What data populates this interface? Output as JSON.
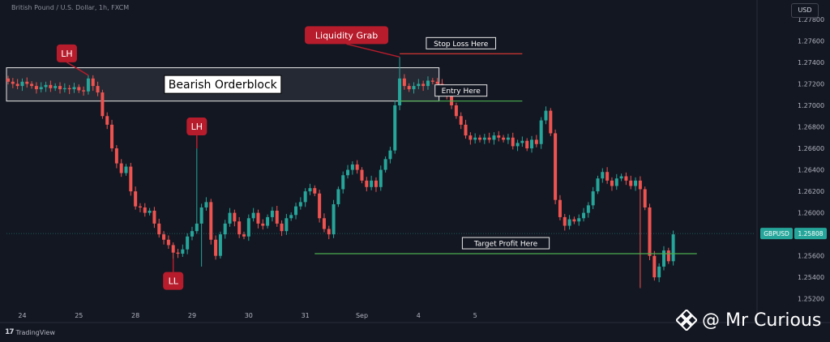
{
  "header": {
    "symbol_title": "British Pound / U.S. Dollar, 1h, FXCM",
    "currency": "USD"
  },
  "footer": {
    "tradingview_label": "TradingView"
  },
  "watermark": {
    "text": "@ Mr Curious",
    "icon": "binance-diamond-icon"
  },
  "price_tag": {
    "symbol": "GBPUSD",
    "value": "1.25808"
  },
  "colors": {
    "background": "#131722",
    "up": "#26a69a",
    "down": "#ef5350",
    "annotation_red": "#b71c2c",
    "stop_line": "#e53935",
    "entry_line": "#4caf50",
    "target_line": "#4caf50",
    "price_tag_bg": "#26a69a"
  },
  "chart_data": {
    "type": "candlestick",
    "instrument": "British Pound / U.S. Dollar, 1h, FXCM",
    "ylim": [
      1.251,
      1.2795
    ],
    "y_ticks": [
      "1.27800",
      "1.27600",
      "1.27400",
      "1.27200",
      "1.27000",
      "1.26800",
      "1.26600",
      "1.26400",
      "1.26200",
      "1.26000",
      "1.25800",
      "1.25600",
      "1.25400",
      "1.25200"
    ],
    "x_labels": [
      {
        "label": "24",
        "bar": 3
      },
      {
        "label": "25",
        "bar": 15
      },
      {
        "label": "28",
        "bar": 27
      },
      {
        "label": "29",
        "bar": 39
      },
      {
        "label": "30",
        "bar": 51
      },
      {
        "label": "31",
        "bar": 63
      },
      {
        "label": "Sep",
        "bar": 75
      },
      {
        "label": "4",
        "bar": 87
      },
      {
        "label": "5",
        "bar": 99
      }
    ],
    "closes": [
      1.2722,
      1.272,
      1.2718,
      1.2722,
      1.272,
      1.2718,
      1.2715,
      1.2717,
      1.2719,
      1.2716,
      1.2718,
      1.2715,
      1.2716,
      1.2715,
      1.2717,
      1.2714,
      1.2713,
      1.2725,
      1.2718,
      1.2712,
      1.269,
      1.2682,
      1.266,
      1.2646,
      1.2637,
      1.2643,
      1.262,
      1.2606,
      1.2605,
      1.26,
      1.2602,
      1.259,
      1.258,
      1.2575,
      1.257,
      1.2563,
      1.2562,
      1.2566,
      1.2578,
      1.2583,
      1.259,
      1.2605,
      1.261,
      1.2575,
      1.256,
      1.258,
      1.259,
      1.26,
      1.2592,
      1.258,
      1.2578,
      1.2595,
      1.26,
      1.259,
      1.2588,
      1.2596,
      1.2602,
      1.259,
      1.2583,
      1.2595,
      1.2598,
      1.2606,
      1.261,
      1.262,
      1.2623,
      1.2618,
      1.2595,
      1.2585,
      1.258,
      1.2608,
      1.2622,
      1.2635,
      1.264,
      1.2645,
      1.264,
      1.263,
      1.2624,
      1.263,
      1.2624,
      1.264,
      1.265,
      1.2658,
      1.27,
      1.2725,
      1.2718,
      1.2715,
      1.2718,
      1.272,
      1.2718,
      1.2723,
      1.2722,
      1.272,
      1.2714,
      1.271,
      1.27,
      1.269,
      1.2682,
      1.2672,
      1.2668,
      1.267,
      1.2668,
      1.267,
      1.2668,
      1.2672,
      1.267,
      1.2668,
      1.267,
      1.2662,
      1.2665,
      1.2667,
      1.266,
      1.2668,
      1.2664,
      1.2686,
      1.2695,
      1.2674,
      1.2612,
      1.2596,
      1.2588,
      1.2594,
      1.2592,
      1.2595,
      1.26,
      1.2607,
      1.262,
      1.2632,
      1.2638,
      1.263,
      1.2625,
      1.2632,
      1.2634,
      1.263,
      1.2625,
      1.263,
      1.2622,
      1.2605,
      1.256,
      1.254,
      1.255,
      1.2565,
      1.2555,
      1.258
    ],
    "extremes": [
      {
        "bar": 17,
        "high": 1.2728
      },
      {
        "bar": 40,
        "high": 1.266
      },
      {
        "bar": 41,
        "low": 1.255
      },
      {
        "bar": 35,
        "low": 1.2557
      },
      {
        "bar": 83,
        "high": 1.2745
      },
      {
        "bar": 134,
        "low": 1.253
      }
    ],
    "orderblock": {
      "label": "Bearish Orderblock",
      "bar_start": 0,
      "bar_end": 91,
      "top": 1.2735,
      "bottom": 1.2704
    },
    "levels": [
      {
        "label": "Stop Loss Here",
        "price": 1.2748,
        "bar_start": 83,
        "bar_end": 109,
        "color": "#e53935"
      },
      {
        "label": "Entry Here",
        "price": 1.2704,
        "bar_start": 83,
        "bar_end": 109,
        "color": "#4caf50"
      },
      {
        "label": "Target Profit Here",
        "price": 1.2562,
        "bar_start": 65,
        "bar_end": 146,
        "color": "#4caf50"
      }
    ],
    "annotations": [
      {
        "label": "LH",
        "bar": 17,
        "price": 1.2728,
        "position": "above-left"
      },
      {
        "label": "LH",
        "bar": 40,
        "price": 1.266,
        "position": "above"
      },
      {
        "label": "LL",
        "bar": 35,
        "price": 1.2557,
        "position": "below"
      },
      {
        "label": "Liquidity Grab",
        "bar": 83,
        "price": 1.2745,
        "position": "above-left"
      }
    ],
    "last_price": 1.25808
  }
}
